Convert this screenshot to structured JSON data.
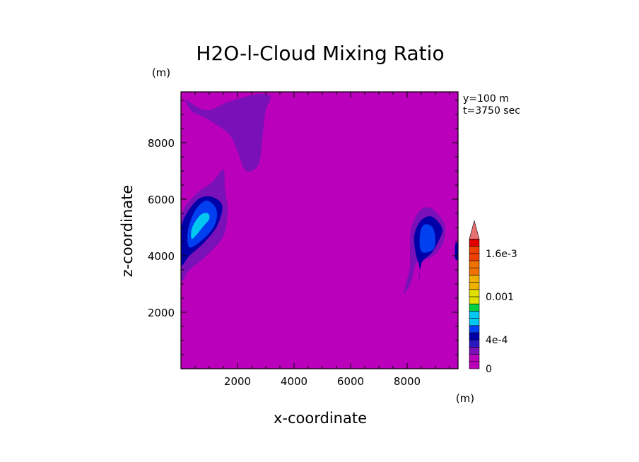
{
  "chart_data": {
    "type": "heatmap",
    "title": "H2O-l-Cloud Mixing Ratio",
    "xlabel": "x-coordinate",
    "ylabel": "z-coordinate",
    "x_unit": "(m)",
    "y_unit": "(m)",
    "xlim": [
      0,
      9800
    ],
    "ylim": [
      0,
      9800
    ],
    "x_ticks": [
      2000,
      4000,
      6000,
      8000
    ],
    "y_ticks": [
      2000,
      4000,
      6000,
      8000
    ],
    "x_tick_labels": [
      "2000",
      "4000",
      "6000",
      "8000"
    ],
    "y_tick_labels": [
      "2000",
      "4000",
      "6000",
      "8000"
    ],
    "info": [
      "y=100 m",
      "t=3750 sec"
    ],
    "grid": false,
    "background_color": "#bb00bb",
    "colorbar": {
      "levels": [
        0,
        0.0001,
        0.0002,
        0.0003,
        0.0004,
        0.0005,
        0.0006,
        0.0007,
        0.0008,
        0.0009,
        0.001,
        0.0011,
        0.0012,
        0.0013,
        0.0014,
        0.0015,
        0.0016,
        0.0017,
        0.0018
      ],
      "colors": [
        "#bb00bb",
        "#7a10b8",
        "#2a18c0",
        "#0000a8",
        "#0040f0",
        "#00c8f0",
        "#00d040",
        "#e0e000",
        "#f0b000",
        "#f07000",
        "#f04000",
        "#e00000"
      ],
      "labels": [
        "0",
        "4e-4",
        "0.001",
        "1.6e-3"
      ],
      "extend": "max"
    },
    "series": [
      {
        "level": 0.0001,
        "color": "#7a10b8",
        "polygons": [
          [
            [
              200,
              9500
            ],
            [
              900,
              9150
            ],
            [
              1700,
              9450
            ],
            [
              2600,
              9700
            ],
            [
              3100,
              9700
            ],
            [
              3150,
              9500
            ],
            [
              3000,
              9150
            ],
            [
              2900,
              8350
            ],
            [
              2750,
              7250
            ],
            [
              2300,
              7000
            ],
            [
              2000,
              7700
            ],
            [
              1700,
              8300
            ],
            [
              1000,
              8800
            ],
            [
              400,
              9100
            ],
            [
              200,
              9400
            ]
          ],
          [
            [
              1500,
              7050
            ],
            [
              1100,
              6600
            ],
            [
              500,
              6150
            ],
            [
              0,
              5300
            ],
            [
              0,
              3200
            ],
            [
              300,
              3500
            ],
            [
              900,
              4000
            ],
            [
              1500,
              4700
            ],
            [
              1650,
              5600
            ],
            [
              1550,
              6400
            ]
          ],
          [
            [
              7900,
              2650
            ],
            [
              8150,
              3100
            ],
            [
              8300,
              3700
            ],
            [
              8550,
              3900
            ],
            [
              8850,
              3950
            ],
            [
              9250,
              4400
            ],
            [
              9350,
              5000
            ],
            [
              9150,
              5400
            ],
            [
              8800,
              5700
            ],
            [
              8450,
              5600
            ],
            [
              8150,
              5000
            ],
            [
              8100,
              4300
            ],
            [
              8100,
              3600
            ],
            [
              7950,
              3000
            ]
          ],
          [
            [
              9750,
              4450
            ],
            [
              9800,
              4450
            ],
            [
              9800,
              3950
            ],
            [
              9750,
              3950
            ]
          ]
        ]
      },
      {
        "level": 0.0003,
        "color": "#0000a8",
        "polygons": [
          [
            [
              0,
              3700
            ],
            [
              300,
              4000
            ],
            [
              850,
              4500
            ],
            [
              1300,
              5100
            ],
            [
              1450,
              5800
            ],
            [
              1000,
              6100
            ],
            [
              500,
              5900
            ],
            [
              0,
              5000
            ]
          ],
          [
            [
              8400,
              3000
            ],
            [
              8500,
              3700
            ],
            [
              8650,
              3900
            ],
            [
              8900,
              4150
            ],
            [
              9150,
              4600
            ],
            [
              9250,
              4900
            ],
            [
              9100,
              5200
            ],
            [
              8800,
              5400
            ],
            [
              8450,
              5200
            ],
            [
              8250,
              4700
            ],
            [
              8300,
              4100
            ],
            [
              8450,
              3500
            ]
          ],
          [
            [
              9700,
              4400
            ],
            [
              9800,
              4400
            ],
            [
              9800,
              3900
            ],
            [
              9700,
              3900
            ]
          ]
        ]
      },
      {
        "level": 0.0004,
        "color": "#0040f0",
        "polygons": [
          [
            [
              300,
              4300
            ],
            [
              800,
              4600
            ],
            [
              1200,
              5100
            ],
            [
              1250,
              5650
            ],
            [
              900,
              5950
            ],
            [
              500,
              5600
            ],
            [
              250,
              4900
            ]
          ],
          [
            [
              8500,
              4150
            ],
            [
              8900,
              4200
            ],
            [
              9000,
              4550
            ],
            [
              8900,
              5000
            ],
            [
              8600,
              5100
            ],
            [
              8450,
              4750
            ]
          ]
        ]
      },
      {
        "level": 0.0006,
        "color": "#00c8f0",
        "polygons": [
          [
            [
              400,
              4600
            ],
            [
              800,
              5050
            ],
            [
              1000,
              5300
            ],
            [
              950,
              5500
            ],
            [
              700,
              5450
            ],
            [
              400,
              5000
            ]
          ]
        ]
      }
    ]
  }
}
